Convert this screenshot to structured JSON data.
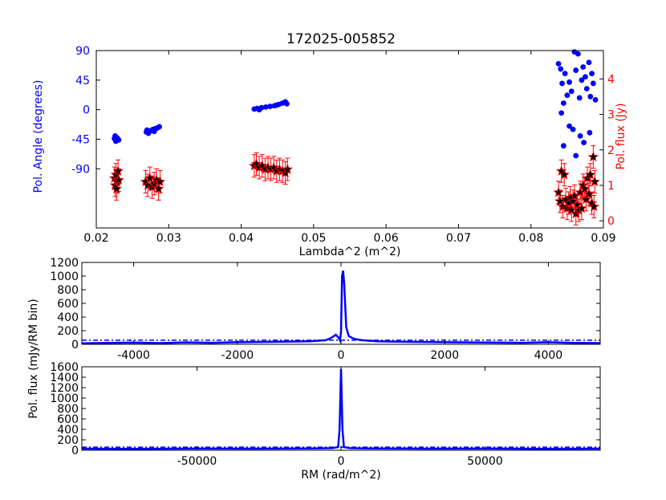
{
  "figure": {
    "title": "172025-005852",
    "colors": {
      "angle": "#0000ff",
      "flux": "#ff0000",
      "star": "#000000",
      "rm": "#0000ff"
    }
  },
  "chart_data": [
    {
      "panel": "top",
      "type": "scatter",
      "title": "172025-005852",
      "xlabel": "Lambda^2 (m^2)",
      "ylabel": "Pol. Angle (degrees)",
      "y2label": "Pol. flux (Jy)",
      "xlim": [
        0.02,
        0.09
      ],
      "ylim": [
        -180,
        90
      ],
      "y2lim": [
        -0.2,
        4.8
      ],
      "xticks": [
        "0.02",
        "0.03",
        "0.04",
        "0.05",
        "0.06",
        "0.07",
        "0.08",
        "0.09"
      ],
      "yticks": [
        "90",
        "45",
        "0",
        "-45",
        "-90"
      ],
      "y2ticks": [
        "0",
        "1",
        "2",
        "3",
        "4"
      ],
      "series": [
        {
          "axis": "left",
          "marker": "dot",
          "points": [
            [
              0.0225,
              -44
            ],
            [
              0.0227,
              -48
            ],
            [
              0.0229,
              -43
            ],
            [
              0.0231,
              -46
            ],
            [
              0.0226,
              -40
            ],
            [
              0.0269,
              -34
            ],
            [
              0.0272,
              -36
            ],
            [
              0.0275,
              -32
            ],
            [
              0.0278,
              -30
            ],
            [
              0.0281,
              -29
            ],
            [
              0.0284,
              -28
            ],
            [
              0.0287,
              -26
            ],
            [
              0.027,
              -31
            ],
            [
              0.028,
              -33
            ],
            [
              0.0418,
              1
            ],
            [
              0.0422,
              2
            ],
            [
              0.0428,
              3
            ],
            [
              0.0434,
              4
            ],
            [
              0.044,
              5
            ],
            [
              0.0446,
              6
            ],
            [
              0.0452,
              8
            ],
            [
              0.0457,
              10
            ],
            [
              0.0461,
              12
            ],
            [
              0.0463,
              9
            ],
            [
              0.0425,
              0
            ],
            [
              0.0449,
              7
            ],
            [
              0.0838,
              70
            ],
            [
              0.0841,
              62
            ],
            [
              0.0843,
              40
            ],
            [
              0.0845,
              10
            ],
            [
              0.0842,
              -5
            ],
            [
              0.0847,
              55
            ],
            [
              0.085,
              22
            ],
            [
              0.0853,
              42
            ],
            [
              0.0856,
              28
            ],
            [
              0.0858,
              -30
            ],
            [
              0.086,
              88
            ],
            [
              0.0862,
              60
            ],
            [
              0.0865,
              85
            ],
            [
              0.0867,
              18
            ],
            [
              0.0868,
              -40
            ],
            [
              0.087,
              45
            ],
            [
              0.0872,
              65
            ],
            [
              0.0875,
              50
            ],
            [
              0.0877,
              32
            ],
            [
              0.088,
              72
            ],
            [
              0.0882,
              20
            ],
            [
              0.0884,
              55
            ],
            [
              0.0886,
              40
            ],
            [
              0.0889,
              15
            ],
            [
              0.0845,
              -55
            ],
            [
              0.0853,
              -25
            ],
            [
              0.0862,
              -70
            ],
            [
              0.0873,
              -50
            ],
            [
              0.0881,
              -35
            ]
          ]
        },
        {
          "axis": "right",
          "marker": "star",
          "errorbars": true,
          "points": [
            [
              0.0225,
              1.2
            ],
            [
              0.0226,
              1.0
            ],
            [
              0.0227,
              1.3
            ],
            [
              0.0228,
              0.9
            ],
            [
              0.0229,
              1.1
            ],
            [
              0.023,
              1.4
            ],
            [
              0.0231,
              1.15
            ],
            [
              0.0268,
              1.1
            ],
            [
              0.0271,
              1.0
            ],
            [
              0.0274,
              1.2
            ],
            [
              0.0277,
              0.95
            ],
            [
              0.028,
              1.05
            ],
            [
              0.0283,
              1.15
            ],
            [
              0.0286,
              0.9
            ],
            [
              0.0288,
              1.1
            ],
            [
              0.0418,
              1.55
            ],
            [
              0.0421,
              1.6
            ],
            [
              0.0425,
              1.5
            ],
            [
              0.0429,
              1.55
            ],
            [
              0.0433,
              1.45
            ],
            [
              0.0437,
              1.5
            ],
            [
              0.0441,
              1.45
            ],
            [
              0.0445,
              1.5
            ],
            [
              0.0449,
              1.4
            ],
            [
              0.0453,
              1.45
            ],
            [
              0.0457,
              1.4
            ],
            [
              0.0461,
              1.35
            ],
            [
              0.0464,
              1.45
            ],
            [
              0.0838,
              0.8
            ],
            [
              0.084,
              0.55
            ],
            [
              0.0842,
              1.4
            ],
            [
              0.0844,
              0.4
            ],
            [
              0.0846,
              1.3
            ],
            [
              0.0848,
              0.6
            ],
            [
              0.085,
              0.35
            ],
            [
              0.0852,
              0.5
            ],
            [
              0.0854,
              0.65
            ],
            [
              0.0856,
              0.3
            ],
            [
              0.0858,
              0.55
            ],
            [
              0.086,
              0.7
            ],
            [
              0.0862,
              0.2
            ],
            [
              0.0864,
              0.45
            ],
            [
              0.0866,
              0.3
            ],
            [
              0.0868,
              0.8
            ],
            [
              0.087,
              0.35
            ],
            [
              0.0872,
              1.0
            ],
            [
              0.0874,
              0.9
            ],
            [
              0.0876,
              0.6
            ],
            [
              0.0878,
              1.2
            ],
            [
              0.088,
              0.75
            ],
            [
              0.0882,
              1.3
            ],
            [
              0.0884,
              0.5
            ],
            [
              0.0886,
              1.8
            ],
            [
              0.0888,
              1.1
            ],
            [
              0.0887,
              0.4
            ]
          ]
        }
      ]
    },
    {
      "panel": "middle",
      "type": "line",
      "xlabel": "",
      "ylabel": "",
      "xlim": [
        -5000,
        5000
      ],
      "ylim": [
        0,
        1200
      ],
      "xticks": [
        "-4000",
        "-2000",
        "0",
        "2000",
        "4000"
      ],
      "yticks": [
        "0",
        "200",
        "400",
        "600",
        "800",
        "1000",
        "1200"
      ],
      "threshold": 60,
      "series": [
        {
          "points": [
            [
              -5000,
              15
            ],
            [
              -4500,
              20
            ],
            [
              -4000,
              25
            ],
            [
              -3500,
              18
            ],
            [
              -3000,
              28
            ],
            [
              -2500,
              22
            ],
            [
              -2000,
              30
            ],
            [
              -1500,
              35
            ],
            [
              -1000,
              40
            ],
            [
              -600,
              45
            ],
            [
              -300,
              60
            ],
            [
              -200,
              90
            ],
            [
              -100,
              140
            ],
            [
              -50,
              100
            ],
            [
              -20,
              60
            ],
            [
              0,
              180
            ],
            [
              20,
              1000
            ],
            [
              40,
              1080
            ],
            [
              60,
              900
            ],
            [
              100,
              250
            ],
            [
              150,
              120
            ],
            [
              250,
              80
            ],
            [
              400,
              60
            ],
            [
              700,
              45
            ],
            [
              1000,
              40
            ],
            [
              1500,
              35
            ],
            [
              2000,
              30
            ],
            [
              2500,
              28
            ],
            [
              3000,
              25
            ],
            [
              3500,
              22
            ],
            [
              4000,
              30
            ],
            [
              4500,
              20
            ],
            [
              5000,
              18
            ]
          ]
        }
      ]
    },
    {
      "panel": "bottom",
      "type": "line",
      "xlabel": "RM (rad/m^2)",
      "ylabel": "Pol. flux (mJy/RM bin)",
      "xlim": [
        -90000,
        90000
      ],
      "ylim": [
        0,
        1600
      ],
      "xticks": [
        "-50000",
        "0",
        "50000"
      ],
      "yticks": [
        "0",
        "200",
        "400",
        "600",
        "800",
        "1000",
        "1200",
        "1400",
        "1600"
      ],
      "threshold": 60,
      "series": [
        {
          "points": [
            [
              -90000,
              30
            ],
            [
              -70000,
              28
            ],
            [
              -50000,
              32
            ],
            [
              -30000,
              30
            ],
            [
              -10000,
              35
            ],
            [
              -3000,
              40
            ],
            [
              -1000,
              60
            ],
            [
              -500,
              400
            ],
            [
              0,
              1560
            ],
            [
              500,
              400
            ],
            [
              1000,
              60
            ],
            [
              3000,
              40
            ],
            [
              10000,
              35
            ],
            [
              30000,
              30
            ],
            [
              50000,
              32
            ],
            [
              70000,
              28
            ],
            [
              90000,
              30
            ]
          ]
        }
      ]
    }
  ]
}
